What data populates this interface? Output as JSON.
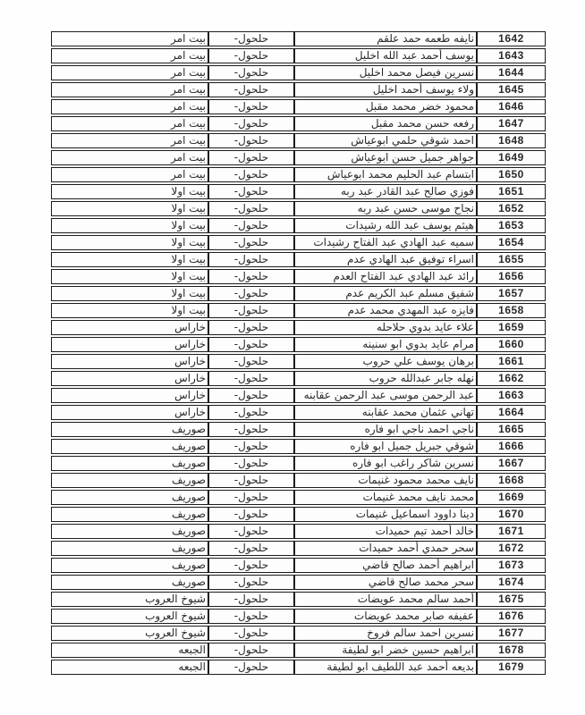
{
  "page": {
    "background_color": "#fefefe",
    "border_color": "#1c1c1c",
    "text_color": "#2a2a2a",
    "id_text_color": "#101010"
  },
  "table": {
    "direction": "rtl",
    "district_column_value": "حلحول-",
    "columns": [
      "id",
      "name",
      "district",
      "area"
    ],
    "rows": [
      {
        "id": "1642",
        "name": "نايفه طعمه حمد علقم",
        "area": "بيت امر"
      },
      {
        "id": "1643",
        "name": "يوسف أحمد عبد الله اخليل",
        "area": "بيت امر"
      },
      {
        "id": "1644",
        "name": "نسرين فيصل محمد اخليل",
        "area": "بيت امر"
      },
      {
        "id": "1645",
        "name": "ولاء يوسف أحمد اخليل",
        "area": "بيت امر"
      },
      {
        "id": "1646",
        "name": "محمود خضر محمد مقبل",
        "area": "بيت امر"
      },
      {
        "id": "1647",
        "name": "رفعه حسن محمد مقبل",
        "area": "بيت امر"
      },
      {
        "id": "1648",
        "name": "احمد شوقي حلمي ابوعياش",
        "area": "بيت امر"
      },
      {
        "id": "1649",
        "name": "جواهر جميل حسن ابوعياش",
        "area": "بيت امر"
      },
      {
        "id": "1650",
        "name": "ابتسام عبد الحليم محمد ابوعياش",
        "area": "بيت امر"
      },
      {
        "id": "1651",
        "name": "فوزي صالح عبد القادر عبد ربه",
        "area": "بيت اولا"
      },
      {
        "id": "1652",
        "name": "نجاح موسى حسن عبد ربه",
        "area": "بيت اولا"
      },
      {
        "id": "1653",
        "name": "هيثم يوسف عبد الله رشيدات",
        "area": "بيت اولا"
      },
      {
        "id": "1654",
        "name": "سميه عبد الهادي عبد الفتاح رشيدات",
        "area": "بيت اولا"
      },
      {
        "id": "1655",
        "name": "اسراء توفيق عبد الهادي عدم",
        "area": "بيت اولا"
      },
      {
        "id": "1656",
        "name": "رائد عبد الهادي عبد الفتاح العدم",
        "area": "بيت اولا"
      },
      {
        "id": "1657",
        "name": "شفيق مسلم عبد الكريم عدم",
        "area": "بيت اولا"
      },
      {
        "id": "1658",
        "name": "فايزه عبد المهدي محمد عدم",
        "area": "بيت اولا"
      },
      {
        "id": "1659",
        "name": "علاء عايد بدوي حلاحله",
        "area": "خاراس"
      },
      {
        "id": "1660",
        "name": "مرام عايد بدوي ابو سنينه",
        "area": "خاراس"
      },
      {
        "id": "1661",
        "name": "برهان يوسف علي حروب",
        "area": "خاراس"
      },
      {
        "id": "1662",
        "name": "نهله جابر عبدالله حروب",
        "area": "خاراس"
      },
      {
        "id": "1663",
        "name": "عبد الرحمن موسى عبد الرحمن عقابنه",
        "area": "خاراس"
      },
      {
        "id": "1664",
        "name": "تهاني عثمان محمد عقابنه",
        "area": "خاراس"
      },
      {
        "id": "1665",
        "name": "ناجي احمد ناجي ابو فاره",
        "area": "صوريف"
      },
      {
        "id": "1666",
        "name": "شوقي جبريل جميل ابو فاره",
        "area": "صوريف"
      },
      {
        "id": "1667",
        "name": "نسرين شاكر راغب ابو فاره",
        "area": "صوريف"
      },
      {
        "id": "1668",
        "name": "نايف محمد محمود غنيمات",
        "area": "صوريف"
      },
      {
        "id": "1669",
        "name": "محمد نايف محمد غنيمات",
        "area": "صوريف"
      },
      {
        "id": "1670",
        "name": "دينا داوود اسماعيل غنيمات",
        "area": "صوريف"
      },
      {
        "id": "1671",
        "name": "خالد أحمد تيم حميدات",
        "area": "صوريف"
      },
      {
        "id": "1672",
        "name": "سحر حمدي أحمد حميدات",
        "area": "صوريف"
      },
      {
        "id": "1673",
        "name": "ابراهيم أحمد صالح قاضي",
        "area": "صوريف"
      },
      {
        "id": "1674",
        "name": "سحر محمد صالح قاضي",
        "area": "صوريف"
      },
      {
        "id": "1675",
        "name": "أحمد سالم محمد عويضات",
        "area": "شيوخ العروب"
      },
      {
        "id": "1676",
        "name": "عفيفه صابر محمد عويضات",
        "area": "شيوخ العروب"
      },
      {
        "id": "1677",
        "name": "نسرين احمد سالم فروخ",
        "area": "شيوخ العروب"
      },
      {
        "id": "1678",
        "name": "ابراهيم حسين خضر ابو لطيفة",
        "area": "الجبعه"
      },
      {
        "id": "1679",
        "name": "بديعه أحمد عبد اللطيف ابو لطيفة",
        "area": "الجبعه"
      }
    ]
  }
}
